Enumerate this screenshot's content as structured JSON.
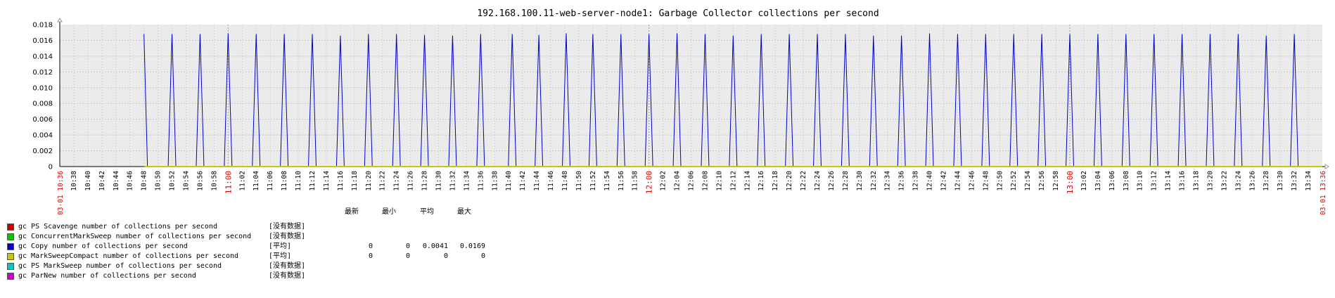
{
  "chart_data": {
    "type": "line",
    "title": "192.168.100.11-web-server-node1: Garbage Collector collections per second",
    "ylim": [
      0,
      0.018
    ],
    "y_ticks": [
      "0.018",
      "0.016",
      "0.014",
      "0.012",
      "0.010",
      "0.008",
      "0.006",
      "0.004",
      "0.002",
      "0"
    ],
    "x_start_label": "03-01 10:36",
    "x_end_label": "03-01 13:36",
    "x_ticks": [
      "10:38",
      "10:40",
      "10:42",
      "10:44",
      "10:46",
      "10:48",
      "10:50",
      "10:52",
      "10:54",
      "10:56",
      "10:58",
      "11:00",
      "11:02",
      "11:04",
      "11:06",
      "11:08",
      "11:10",
      "11:12",
      "11:14",
      "11:16",
      "11:18",
      "11:20",
      "11:22",
      "11:24",
      "11:26",
      "11:28",
      "11:30",
      "11:32",
      "11:34",
      "11:36",
      "11:38",
      "11:40",
      "11:42",
      "11:44",
      "11:46",
      "11:48",
      "11:50",
      "11:52",
      "11:54",
      "11:56",
      "11:58",
      "12:00",
      "12:02",
      "12:04",
      "12:06",
      "12:08",
      "12:10",
      "12:12",
      "12:14",
      "12:16",
      "12:18",
      "12:20",
      "12:22",
      "12:24",
      "12:26",
      "12:28",
      "12:30",
      "12:32",
      "12:34",
      "12:36",
      "12:38",
      "12:40",
      "12:42",
      "12:44",
      "12:46",
      "12:48",
      "12:50",
      "12:52",
      "12:54",
      "12:56",
      "12:58",
      "13:00",
      "13:02",
      "13:04",
      "13:06",
      "13:08",
      "13:10",
      "13:12",
      "13:14",
      "13:16",
      "13:18",
      "13:20",
      "13:22",
      "13:24",
      "13:26",
      "13:28",
      "13:30",
      "13:32",
      "13:34"
    ],
    "major_ticks": [
      "11:00",
      "12:00",
      "13:00"
    ],
    "grid": true,
    "series": [
      {
        "name": "gc Copy number of collections per second",
        "color": "#0000c8",
        "start_minutes": 12,
        "spike_minutes": [
          12.2,
          16,
          20,
          24,
          28,
          32,
          36,
          40,
          44,
          48,
          52,
          56,
          60,
          64.5,
          68.3,
          72.2,
          76,
          80,
          84,
          88,
          92,
          96,
          100,
          104,
          108,
          112,
          116,
          120,
          124,
          128,
          132,
          136,
          140,
          144,
          148,
          152,
          156,
          160,
          164,
          168,
          172,
          176
        ],
        "spike_values": [
          0.0168,
          0.0168,
          0.0168,
          0.0169,
          0.0168,
          0.0168,
          0.0168,
          0.0166,
          0.0168,
          0.0168,
          0.0167,
          0.0166,
          0.0168,
          0.0168,
          0.0167,
          0.0169,
          0.0168,
          0.0168,
          0.0168,
          0.0169,
          0.0168,
          0.0166,
          0.0168,
          0.0168,
          0.0168,
          0.0168,
          0.0166,
          0.0166,
          0.0169,
          0.0168,
          0.0168,
          0.0168,
          0.0168,
          0.0168,
          0.0168,
          0.0168,
          0.0168,
          0.0168,
          0.0168,
          0.0168,
          0.0166,
          0.0168
        ]
      },
      {
        "name": "gc MarkSweepCompact number of collections per second",
        "color": "#c8c800",
        "start_minutes": 12,
        "constant_value": 0
      }
    ]
  },
  "legend": {
    "headers": [
      "最新",
      "最小",
      "平均",
      "最大"
    ],
    "items": [
      {
        "name": "gc PS Scavenge number of collections per second",
        "color": "#c80000",
        "func": "[没有数据]",
        "values": []
      },
      {
        "name": "gc ConcurrentMarkSweep number of collections per second",
        "color": "#00c800",
        "func": "[没有数据]",
        "values": []
      },
      {
        "name": "gc Copy number of collections per second",
        "color": "#0000c8",
        "func": "[平均]",
        "values": [
          "0",
          "0",
          "0.0041",
          "0.0169"
        ]
      },
      {
        "name": "gc MarkSweepCompact number of collections per second",
        "color": "#c8c800",
        "func": "[平均]",
        "values": [
          "0",
          "0",
          "0",
          "0"
        ]
      },
      {
        "name": "gc PS MarkSweep number of collections per second",
        "color": "#00c8c8",
        "func": "[没有数据]",
        "values": []
      },
      {
        "name": "gc ParNew number of collections per second",
        "color": "#c800c8",
        "func": "[没有数据]",
        "values": []
      }
    ]
  }
}
